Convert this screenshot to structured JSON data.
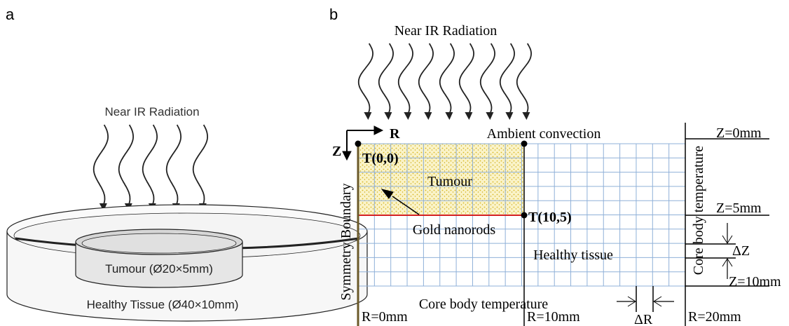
{
  "panel_a": {
    "label": "a",
    "radiation": "Near IR Radiation",
    "tumour": "Tumour (Ø20×5mm)",
    "healthy": "Healthy Tissue (Ø40×10mm)"
  },
  "panel_b": {
    "label": "b",
    "radiation": "Near IR Radiation",
    "axis_r": "R",
    "axis_z": "Z",
    "top_boundary": "Ambient convection",
    "left_boundary": "Symmetry Boundary",
    "right_boundary": "Core body temperature",
    "bottom_boundary": "Core body temperature",
    "tumour": "Tumour",
    "healthy": "Healthy tissue",
    "nanorods": "Gold nanorods",
    "node_origin": "T(0,0)",
    "node_corner": "T(10,5)",
    "z_labels": [
      "Z=0mm",
      "Z=5mm",
      "Z=10mm"
    ],
    "delta_z": "ΔZ",
    "r_labels": [
      "R=0mm",
      "R=10mm",
      "R=20mm"
    ],
    "delta_r": "ΔR"
  }
}
